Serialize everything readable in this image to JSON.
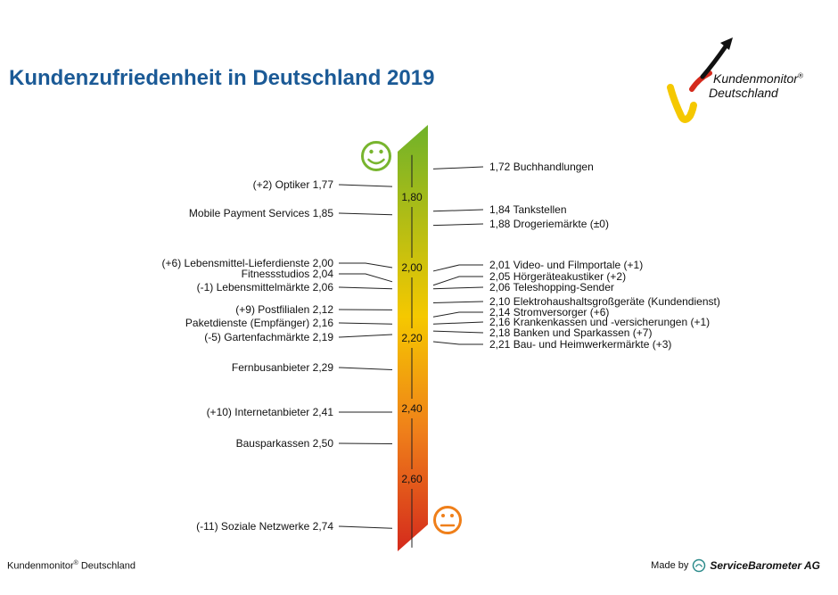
{
  "header": {
    "title": "Kundenzufriedenheit in Deutschland 2019"
  },
  "logo": {
    "line1": "Kundenmonitor",
    "reg": "®",
    "line2": "Deutschland"
  },
  "footer": {
    "left": "Kundenmonitor",
    "left_reg": "®",
    "left_rest": " Deutschland",
    "made_by": "Made by",
    "brand": "ServiceBarometer AG"
  },
  "colors": {
    "title": "#1b5a96",
    "scale_top": "#6fb22a",
    "scale_mid": "#f5c800",
    "scale_orange": "#ef7f1a",
    "scale_bottom": "#d42a1c",
    "happy_face": "#78b52e",
    "neutral_face": "#ef7f1a"
  },
  "chart_data": {
    "type": "scale",
    "title": "Kundenzufriedenheit in Deutschland 2019",
    "axis": {
      "min": 1.65,
      "max": 2.82,
      "ticks": [
        1.8,
        2.0,
        2.2,
        2.4,
        2.6
      ],
      "tick_labels": [
        "1,80",
        "2,00",
        "2,20",
        "2,40",
        "2,60"
      ],
      "direction": "top=best"
    },
    "left": [
      {
        "value": 1.77,
        "value_label": "1,77",
        "label": "(+2) Optiker"
      },
      {
        "value": 1.85,
        "value_label": "1,85",
        "label": "Mobile Payment Services"
      },
      {
        "value": 2.0,
        "value_label": "2,00",
        "label": "(+6) Lebensmittel-Lieferdienste"
      },
      {
        "value": 2.04,
        "value_label": "2,04",
        "label": "Fitnessstudios"
      },
      {
        "value": 2.06,
        "value_label": "2,06",
        "label": "(-1) Lebensmittelmärkte"
      },
      {
        "value": 2.12,
        "value_label": "2,12",
        "label": "(+9) Postfilialen"
      },
      {
        "value": 2.16,
        "value_label": "2,16",
        "label": "Paketdienste (Empfänger)"
      },
      {
        "value": 2.19,
        "value_label": "2,19",
        "label": "(-5) Gartenfachmärkte"
      },
      {
        "value": 2.29,
        "value_label": "2,29",
        "label": "Fernbusanbieter"
      },
      {
        "value": 2.41,
        "value_label": "2,41",
        "label": "(+10) Internetanbieter"
      },
      {
        "value": 2.5,
        "value_label": "2,50",
        "label": "Bausparkassen"
      },
      {
        "value": 2.74,
        "value_label": "2,74",
        "label": "(-11) Soziale Netzwerke"
      }
    ],
    "right": [
      {
        "value": 1.72,
        "value_label": "1,72",
        "label": "Buchhandlungen"
      },
      {
        "value": 1.84,
        "value_label": "1,84",
        "label": "Tankstellen"
      },
      {
        "value": 1.88,
        "value_label": "1,88",
        "label": "Drogeriemärkte (±0)"
      },
      {
        "value": 2.01,
        "value_label": "2,01",
        "label": "Video- und Filmportale (+1)"
      },
      {
        "value": 2.05,
        "value_label": "2,05",
        "label": "Hörgeräteakustiker (+2)"
      },
      {
        "value": 2.06,
        "value_label": "2,06",
        "label": "Teleshopping-Sender"
      },
      {
        "value": 2.1,
        "value_label": "2,10",
        "label": "Elektrohaushaltsgroßgeräte (Kundendienst)"
      },
      {
        "value": 2.14,
        "value_label": "2,14",
        "label": "Stromversorger (+6)"
      },
      {
        "value": 2.16,
        "value_label": "2,16",
        "label": "Krankenkassen und -versicherungen (+1)"
      },
      {
        "value": 2.18,
        "value_label": "2,18",
        "label": "Banken und Sparkassen (+7)"
      },
      {
        "value": 2.21,
        "value_label": "2,21",
        "label": "Bau- und Heimwerkermärkte (+3)"
      }
    ]
  }
}
